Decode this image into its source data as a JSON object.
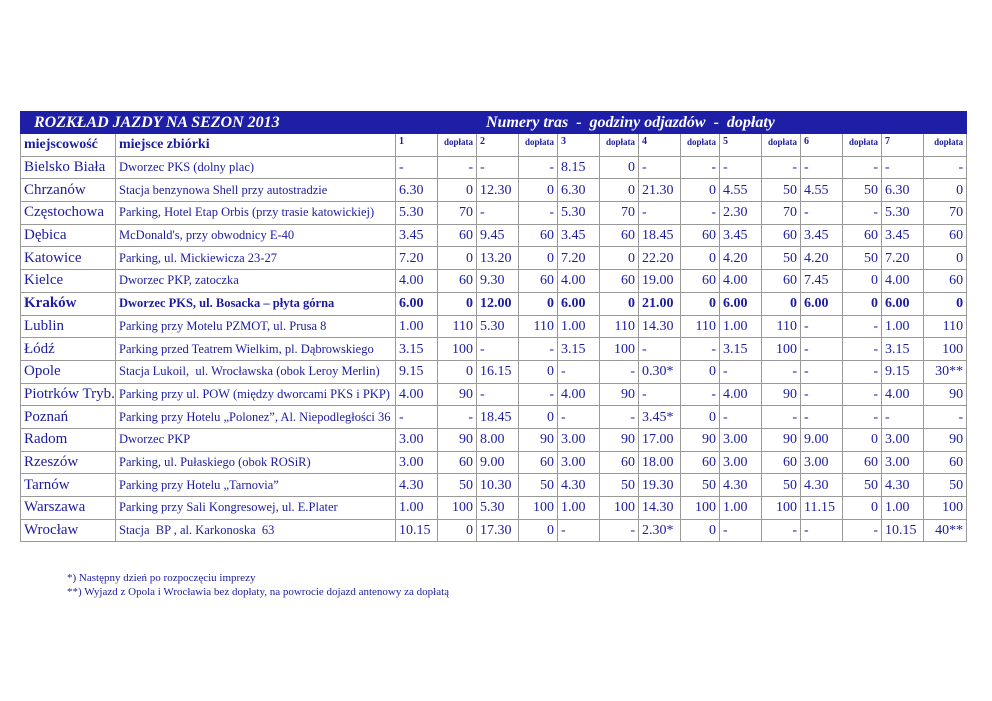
{
  "header": {
    "title": "ROZKŁAD JAZDY NA SEZON 2013",
    "subtitle": "Numery tras  -  godziny odjazdów  -  dopłaty"
  },
  "table": {
    "columns": [
      "miejscowość",
      "miejsce zbiórki",
      "1",
      "dopłata",
      "2",
      "dopłata",
      "3",
      "dopłata",
      "4",
      "dopłata",
      "5",
      "dopłata",
      "6",
      "dopłata",
      "7",
      "dopłata"
    ],
    "rows": [
      [
        "Bielsko Biała",
        "Dworzec PKS (dolny plac)",
        "-",
        "-",
        "-",
        "-",
        "8.15",
        "0",
        "-",
        "-",
        "-",
        "-",
        "-",
        "-",
        "-",
        "-"
      ],
      [
        "Chrzanów",
        "Stacja benzynowa Shell przy autostradzie",
        "6.30",
        "0",
        "12.30",
        "0",
        "6.30",
        "0",
        "21.30",
        "0",
        "4.55",
        "50",
        "4.55",
        "50",
        "6.30",
        "0"
      ],
      [
        "Częstochowa",
        "Parking, Hotel Etap Orbis (przy trasie katowickiej)",
        "5.30",
        "70",
        "-",
        "-",
        "5.30",
        "70",
        "-",
        "-",
        "2.30",
        "70",
        "-",
        "-",
        "5.30",
        "70"
      ],
      [
        "Dębica",
        "McDonald's, przy obwodnicy E-40",
        "3.45",
        "60",
        "9.45",
        "60",
        "3.45",
        "60",
        "18.45",
        "60",
        "3.45",
        "60",
        "3.45",
        "60",
        "3.45",
        "60"
      ],
      [
        "Katowice",
        "Parking, ul. Mickiewicza 23-27",
        "7.20",
        "0",
        "13.20",
        "0",
        "7.20",
        "0",
        "22.20",
        "0",
        "4.20",
        "50",
        "4.20",
        "50",
        "7.20",
        "0"
      ],
      [
        "Kielce",
        "Dworzec PKP, zatoczka",
        "4.00",
        "60",
        "9.30",
        "60",
        "4.00",
        "60",
        "19.00",
        "60",
        "4.00",
        "60",
        "7.45",
        "0",
        "4.00",
        "60"
      ],
      [
        "Kraków",
        "Dworzec PKS, ul. Bosacka – płyta górna",
        "6.00",
        "0",
        "12.00",
        "0",
        "6.00",
        "0",
        "21.00",
        "0",
        "6.00",
        "0",
        "6.00",
        "0",
        "6.00",
        "0"
      ],
      [
        "Lublin",
        "Parking przy Motelu PZMOT, ul. Prusa 8",
        "1.00",
        "110",
        "5.30",
        "110",
        "1.00",
        "110",
        "14.30",
        "110",
        "1.00",
        "110",
        "-",
        "-",
        "1.00",
        "110"
      ],
      [
        "Łódź",
        "Parking przed Teatrem Wielkim, pl. Dąbrowskiego",
        "3.15",
        "100",
        "-",
        "-",
        "3.15",
        "100",
        "-",
        "-",
        "3.15",
        "100",
        "-",
        "-",
        "3.15",
        "100"
      ],
      [
        "Opole",
        "Stacja Lukoil,  ul. Wrocławska (obok Leroy Merlin)",
        "9.15",
        "0",
        "16.15",
        "0",
        "-",
        "-",
        "0.30*",
        "0",
        "-",
        "-",
        "-",
        "-",
        "9.15",
        "30**"
      ],
      [
        "Piotrków Tryb.",
        "Parking przy ul. POW (między dworcami PKS i PKP)",
        "4.00",
        "90",
        "-",
        "-",
        "4.00",
        "90",
        "-",
        "-",
        "4.00",
        "90",
        "-",
        "-",
        "4.00",
        "90"
      ],
      [
        "Poznań",
        "Parking przy Hotelu „Polonez”, Al. Niepodległości 36",
        "-",
        "-",
        "18.45",
        "0",
        "-",
        "-",
        "3.45*",
        "0",
        "-",
        "-",
        "-",
        "-",
        "-",
        "-"
      ],
      [
        "Radom",
        "Dworzec PKP",
        "3.00",
        "90",
        "8.00",
        "90",
        "3.00",
        "90",
        "17.00",
        "90",
        "3.00",
        "90",
        "9.00",
        "0",
        "3.00",
        "90"
      ],
      [
        "Rzeszów",
        "Parking, ul. Pułaskiego (obok ROSiR)",
        "3.00",
        "60",
        "9.00",
        "60",
        "3.00",
        "60",
        "18.00",
        "60",
        "3.00",
        "60",
        "3.00",
        "60",
        "3.00",
        "60"
      ],
      [
        "Tarnów",
        "Parking przy Hotelu „Tarnovia”",
        "4.30",
        "50",
        "10.30",
        "50",
        "4.30",
        "50",
        "19.30",
        "50",
        "4.30",
        "50",
        "4.30",
        "50",
        "4.30",
        "50"
      ],
      [
        "Warszawa",
        "Parking przy Sali Kongresowej, ul. E.Plater",
        "1.00",
        "100",
        "5.30",
        "100",
        "1.00",
        "100",
        "14.30",
        "100",
        "1.00",
        "100",
        "11.15",
        "0",
        "1.00",
        "100"
      ],
      [
        "Wrocław",
        "Stacja  BP , al. Karkonoska  63",
        "10.15",
        "0",
        "17.30",
        "0",
        "-",
        "-",
        "2.30*",
        "0",
        "-",
        "-",
        "-",
        "-",
        "10.15",
        "40**"
      ]
    ]
  },
  "footnotes": [
    "*) Następny dzień po rozpoczęciu imprezy",
    "**) Wyjazd z Opola i Wrocławia bez dopłaty, na powrocie dojazd antenowy za dopłatą"
  ]
}
